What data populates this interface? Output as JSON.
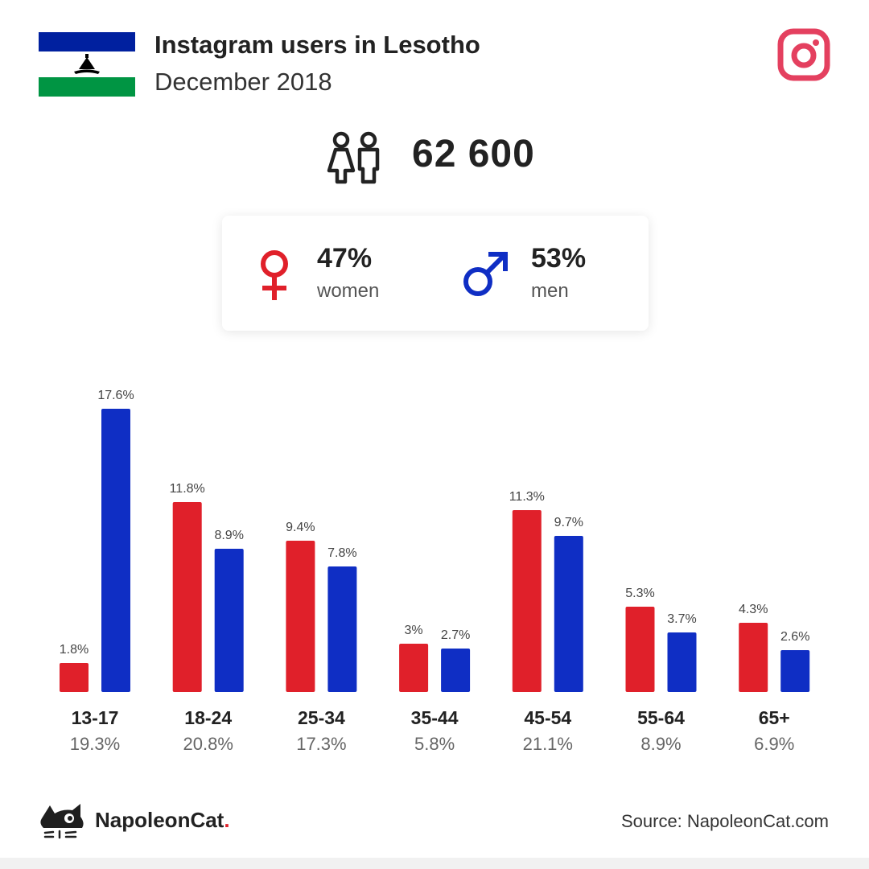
{
  "header": {
    "title": "Instagram users in Lesotho",
    "subtitle": "December 2018"
  },
  "summary": {
    "total_users": "62 600",
    "women_pct": "47%",
    "women_label": "women",
    "men_pct": "53%",
    "men_label": "men"
  },
  "colors": {
    "women": "#e0202a",
    "men": "#0f2ec4",
    "instagram": "#e4405f",
    "flag_blue": "#00209f",
    "flag_green": "#009543"
  },
  "chart_data": {
    "type": "bar",
    "categories": [
      "13-17",
      "18-24",
      "25-34",
      "35-44",
      "45-54",
      "55-64",
      "65+"
    ],
    "category_totals": [
      "19.3%",
      "20.8%",
      "17.3%",
      "5.8%",
      "21.1%",
      "8.9%",
      "6.9%"
    ],
    "series": [
      {
        "color": "#e0202a",
        "values": [
          1.8,
          11.8,
          9.4,
          3,
          11.3,
          5.3,
          4.3
        ],
        "labels": [
          "1.8%",
          "11.8%",
          "9.4%",
          "3%",
          "11.3%",
          "5.3%",
          "4.3%"
        ]
      },
      {
        "color": "#0f2ec4",
        "values": [
          17.6,
          8.9,
          7.8,
          2.7,
          9.7,
          3.7,
          2.6
        ],
        "labels": [
          "17.6%",
          "8.9%",
          "7.8%",
          "2.7%",
          "9.7%",
          "3.7%",
          "2.6%"
        ]
      }
    ],
    "ylim": [
      0,
      17.6
    ]
  },
  "footer": {
    "brand": "NapoleonCat",
    "brand_dot": ".",
    "source": "Source: NapoleonCat.com"
  }
}
